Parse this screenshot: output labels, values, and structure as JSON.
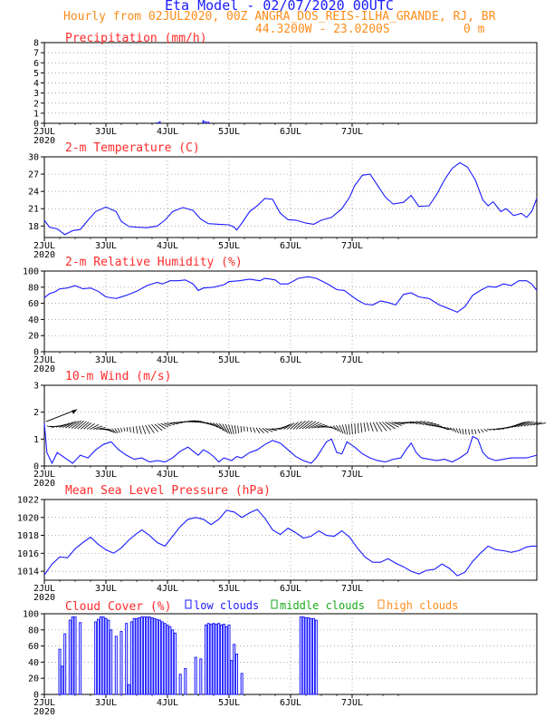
{
  "header": {
    "title": "Eta Model - 02/07/2020 00UTC",
    "line2": "Hourly from 02JUL2020, 00Z  ANGRA_DOS_REIS-ILHA_GRANDE, RJ, BR",
    "coords": "44.3200W - 23.0200S",
    "elevation": "0  m"
  },
  "colors": {
    "title": "#1a1aff",
    "subtitle": "#ff8c1a",
    "panel_title": "#ff2a2a",
    "line": "#1a1aff",
    "wind": "#000000",
    "low": "#1a1aff",
    "middle": "#1aaa1a",
    "high": "#ff8c1a"
  },
  "chart_data": [
    {
      "id": "precip",
      "type": "bar",
      "title": "Precipitation (mm/h)",
      "x_ticks": [
        "2JUL",
        "3JUL",
        "4JUL",
        "5JUL",
        "6JUL",
        "7JUL"
      ],
      "x_year": "2020",
      "ylim": [
        0,
        8
      ],
      "y_ticks": [
        "0",
        "1",
        "2",
        "3",
        "4",
        "5",
        "6",
        "7",
        "8"
      ],
      "bars": [
        [
          44,
          0.1
        ],
        [
          45,
          0.2
        ],
        [
          62,
          0.3
        ],
        [
          63,
          0.2
        ],
        [
          64,
          0.15
        ]
      ]
    },
    {
      "id": "temp",
      "type": "line",
      "title": "2-m Temperature (C)",
      "x_ticks": [
        "2JUL",
        "3JUL",
        "4JUL",
        "5JUL",
        "6JUL",
        "7JUL"
      ],
      "x_year": "2020",
      "ylim": [
        16,
        30
      ],
      "y_ticks": [
        "18",
        "21",
        "24",
        "27",
        "30"
      ],
      "series": [
        [
          0,
          19
        ],
        [
          2,
          17.8
        ],
        [
          5,
          17.5
        ],
        [
          8,
          16.5
        ],
        [
          11,
          17.2
        ],
        [
          14,
          17.4
        ],
        [
          17,
          19
        ],
        [
          20,
          20.5
        ],
        [
          24,
          21.3
        ],
        [
          28,
          20.5
        ],
        [
          30,
          18.8
        ],
        [
          33,
          17.9
        ],
        [
          36,
          17.8
        ],
        [
          40,
          17.7
        ],
        [
          44,
          18
        ],
        [
          47,
          19
        ],
        [
          50,
          20.5
        ],
        [
          54,
          21.2
        ],
        [
          58,
          20.7
        ],
        [
          61,
          19.2
        ],
        [
          64,
          18.4
        ],
        [
          68,
          18.3
        ],
        [
          72,
          18.2
        ],
        [
          74,
          17.8
        ],
        [
          75,
          17.3
        ],
        [
          77,
          18.5
        ],
        [
          80,
          20.5
        ],
        [
          83,
          21.5
        ],
        [
          86,
          22.8
        ],
        [
          89,
          22.6
        ],
        [
          92,
          20.2
        ],
        [
          95,
          19.1
        ],
        [
          98,
          19
        ],
        [
          102,
          18.5
        ],
        [
          105,
          18.3
        ],
        [
          108,
          19
        ],
        [
          112,
          19.5
        ],
        [
          116,
          21
        ],
        [
          119,
          23
        ],
        [
          121,
          25
        ],
        [
          124,
          26.8
        ],
        [
          127,
          27
        ],
        [
          130,
          25
        ],
        [
          133,
          23
        ],
        [
          136,
          21.8
        ],
        [
          140,
          22.1
        ],
        [
          143,
          23.3
        ],
        [
          146,
          21.4
        ],
        [
          150,
          21.5
        ],
        [
          153,
          23.5
        ],
        [
          156,
          26
        ],
        [
          159,
          28
        ],
        [
          162,
          29
        ],
        [
          165,
          28.2
        ],
        [
          168,
          26
        ],
        [
          171,
          22.5
        ],
        [
          173,
          21.5
        ],
        [
          175,
          22.2
        ],
        [
          178,
          20.5
        ],
        [
          180,
          21
        ],
        [
          183,
          19.8
        ],
        [
          186,
          20.2
        ],
        [
          188,
          19.5
        ],
        [
          190,
          20.5
        ],
        [
          192,
          22.8
        ]
      ]
    },
    {
      "id": "rh",
      "type": "line",
      "title": "2-m Relative Humidity (%)",
      "x_ticks": [
        "2JUL",
        "3JUL",
        "4JUL",
        "5JUL",
        "6JUL",
        "7JUL"
      ],
      "x_year": "2020",
      "ylim": [
        0,
        100
      ],
      "y_ticks": [
        "0",
        "20",
        "40",
        "60",
        "80",
        "100"
      ],
      "series": [
        [
          0,
          67
        ],
        [
          2,
          72
        ],
        [
          4,
          74
        ],
        [
          6,
          78
        ],
        [
          9,
          79
        ],
        [
          12,
          82
        ],
        [
          15,
          78
        ],
        [
          18,
          79
        ],
        [
          21,
          75
        ],
        [
          24,
          68
        ],
        [
          28,
          66
        ],
        [
          32,
          70
        ],
        [
          36,
          75
        ],
        [
          40,
          82
        ],
        [
          44,
          86
        ],
        [
          46,
          84
        ],
        [
          49,
          88
        ],
        [
          52,
          88
        ],
        [
          55,
          89
        ],
        [
          58,
          84
        ],
        [
          60,
          76
        ],
        [
          62,
          79
        ],
        [
          66,
          80
        ],
        [
          70,
          83
        ],
        [
          72,
          87
        ],
        [
          76,
          88
        ],
        [
          80,
          90
        ],
        [
          84,
          88
        ],
        [
          86,
          91
        ],
        [
          90,
          89
        ],
        [
          92,
          84
        ],
        [
          95,
          84
        ],
        [
          99,
          91
        ],
        [
          103,
          93
        ],
        [
          106,
          91
        ],
        [
          108,
          88
        ],
        [
          111,
          83
        ],
        [
          114,
          77
        ],
        [
          117,
          76
        ],
        [
          119,
          71
        ],
        [
          122,
          64
        ],
        [
          125,
          59
        ],
        [
          128,
          58
        ],
        [
          131,
          63
        ],
        [
          134,
          61
        ],
        [
          137,
          58
        ],
        [
          140,
          71
        ],
        [
          143,
          73
        ],
        [
          146,
          68
        ],
        [
          150,
          66
        ],
        [
          154,
          58
        ],
        [
          158,
          53
        ],
        [
          161,
          49
        ],
        [
          164,
          56
        ],
        [
          167,
          70
        ],
        [
          170,
          76
        ],
        [
          173,
          81
        ],
        [
          176,
          80
        ],
        [
          179,
          84
        ],
        [
          182,
          82
        ],
        [
          185,
          88
        ],
        [
          188,
          88
        ],
        [
          190,
          84
        ],
        [
          192,
          76
        ]
      ]
    },
    {
      "id": "wind",
      "type": "line",
      "title": "10-m Wind (m/s)",
      "x_ticks": [
        "2JUL",
        "3JUL",
        "4JUL",
        "5JUL",
        "6JUL",
        "7JUL"
      ],
      "x_year": "2020",
      "ylim": [
        0,
        3
      ],
      "y_ticks": [
        "0",
        "1",
        "2",
        "3"
      ],
      "series": [
        [
          0,
          1.6
        ],
        [
          1,
          0.5
        ],
        [
          3,
          0.1
        ],
        [
          5,
          0.5
        ],
        [
          8,
          0.3
        ],
        [
          11,
          0.1
        ],
        [
          14,
          0.4
        ],
        [
          17,
          0.3
        ],
        [
          20,
          0.6
        ],
        [
          23,
          0.8
        ],
        [
          26,
          0.9
        ],
        [
          29,
          0.6
        ],
        [
          32,
          0.4
        ],
        [
          35,
          0.25
        ],
        [
          38,
          0.3
        ],
        [
          41,
          0.15
        ],
        [
          44,
          0.2
        ],
        [
          47,
          0.15
        ],
        [
          50,
          0.3
        ],
        [
          53,
          0.55
        ],
        [
          56,
          0.7
        ],
        [
          58,
          0.55
        ],
        [
          60,
          0.4
        ],
        [
          62,
          0.6
        ],
        [
          64,
          0.5
        ],
        [
          66,
          0.35
        ],
        [
          68,
          0.15
        ],
        [
          70,
          0.3
        ],
        [
          73,
          0.2
        ],
        [
          75,
          0.35
        ],
        [
          77,
          0.3
        ],
        [
          80,
          0.5
        ],
        [
          83,
          0.6
        ],
        [
          86,
          0.8
        ],
        [
          89,
          0.95
        ],
        [
          92,
          0.85
        ],
        [
          95,
          0.6
        ],
        [
          98,
          0.35
        ],
        [
          101,
          0.2
        ],
        [
          104,
          0.1
        ],
        [
          106,
          0.3
        ],
        [
          108,
          0.6
        ],
        [
          110,
          0.9
        ],
        [
          112,
          1.0
        ],
        [
          114,
          0.5
        ],
        [
          116,
          0.45
        ],
        [
          118,
          0.9
        ],
        [
          121,
          0.7
        ],
        [
          124,
          0.45
        ],
        [
          127,
          0.3
        ],
        [
          130,
          0.2
        ],
        [
          133,
          0.15
        ],
        [
          136,
          0.25
        ],
        [
          139,
          0.3
        ],
        [
          141,
          0.6
        ],
        [
          143,
          0.85
        ],
        [
          145,
          0.5
        ],
        [
          147,
          0.3
        ],
        [
          150,
          0.25
        ],
        [
          153,
          0.2
        ],
        [
          156,
          0.25
        ],
        [
          159,
          0.15
        ],
        [
          162,
          0.3
        ],
        [
          165,
          0.5
        ],
        [
          167,
          1.1
        ],
        [
          169,
          1.0
        ],
        [
          171,
          0.5
        ],
        [
          173,
          0.3
        ],
        [
          176,
          0.2
        ],
        [
          179,
          0.25
        ],
        [
          182,
          0.3
        ],
        [
          185,
          0.3
        ],
        [
          188,
          0.3
        ],
        [
          190,
          0.35
        ],
        [
          192,
          0.4
        ]
      ]
    },
    {
      "id": "slp",
      "type": "line",
      "title": "Mean Sea Level Pressure (hPa)",
      "x_ticks": [
        "2JUL",
        "3JUL",
        "4JUL",
        "5JUL",
        "6JUL",
        "7JUL"
      ],
      "x_year": "2020",
      "ylim": [
        1013,
        1022
      ],
      "y_ticks": [
        "1014",
        "1016",
        "1018",
        "1020",
        "1022"
      ],
      "series": [
        [
          0,
          1013.6
        ],
        [
          3,
          1014.8
        ],
        [
          6,
          1015.6
        ],
        [
          9,
          1015.5
        ],
        [
          12,
          1016.5
        ],
        [
          15,
          1017.2
        ],
        [
          18,
          1017.8
        ],
        [
          21,
          1017.0
        ],
        [
          24,
          1016.4
        ],
        [
          27,
          1016.0
        ],
        [
          30,
          1016.6
        ],
        [
          33,
          1017.5
        ],
        [
          36,
          1018.2
        ],
        [
          38,
          1018.6
        ],
        [
          41,
          1018.0
        ],
        [
          44,
          1017.2
        ],
        [
          47,
          1016.8
        ],
        [
          50,
          1017.9
        ],
        [
          53,
          1019.0
        ],
        [
          56,
          1019.8
        ],
        [
          59,
          1020.0
        ],
        [
          62,
          1019.8
        ],
        [
          65,
          1019.2
        ],
        [
          68,
          1019.8
        ],
        [
          71,
          1020.8
        ],
        [
          74,
          1020.6
        ],
        [
          77,
          1020.0
        ],
        [
          80,
          1020.5
        ],
        [
          83,
          1020.9
        ],
        [
          86,
          1019.9
        ],
        [
          89,
          1018.6
        ],
        [
          92,
          1018.1
        ],
        [
          95,
          1018.8
        ],
        [
          98,
          1018.3
        ],
        [
          101,
          1017.7
        ],
        [
          104,
          1017.9
        ],
        [
          107,
          1018.5
        ],
        [
          110,
          1018.0
        ],
        [
          113,
          1017.9
        ],
        [
          116,
          1018.5
        ],
        [
          119,
          1017.8
        ],
        [
          122,
          1016.6
        ],
        [
          125,
          1015.6
        ],
        [
          128,
          1015.0
        ],
        [
          131,
          1015.0
        ],
        [
          134,
          1015.4
        ],
        [
          137,
          1014.9
        ],
        [
          140,
          1014.5
        ],
        [
          143,
          1014.0
        ],
        [
          146,
          1013.7
        ],
        [
          149,
          1014.1
        ],
        [
          152,
          1014.2
        ],
        [
          155,
          1014.8
        ],
        [
          158,
          1014.3
        ],
        [
          161,
          1013.5
        ],
        [
          164,
          1013.9
        ],
        [
          167,
          1015.1
        ],
        [
          170,
          1016.0
        ],
        [
          173,
          1016.8
        ],
        [
          176,
          1016.4
        ],
        [
          179,
          1016.3
        ],
        [
          182,
          1016.1
        ],
        [
          185,
          1016.3
        ],
        [
          188,
          1016.7
        ],
        [
          190,
          1016.8
        ],
        [
          192,
          1016.8
        ]
      ]
    },
    {
      "id": "cloud",
      "type": "bar",
      "title": "Cloud Cover (%)",
      "legend": [
        "low clouds",
        "middle clouds",
        "high clouds"
      ],
      "x_ticks": [
        "2JUL",
        "3JUL",
        "4JUL",
        "5JUL",
        "6JUL",
        "7JUL"
      ],
      "x_year": "2020",
      "ylim": [
        0,
        100
      ],
      "y_ticks": [
        "0",
        "20",
        "40",
        "60",
        "80",
        "100"
      ],
      "bars": [
        [
          6,
          56
        ],
        [
          7,
          35
        ],
        [
          8,
          75
        ],
        [
          10,
          92
        ],
        [
          11,
          96
        ],
        [
          12,
          96
        ],
        [
          14,
          89
        ],
        [
          20,
          90
        ],
        [
          21,
          93
        ],
        [
          22,
          96
        ],
        [
          23,
          96
        ],
        [
          24,
          94
        ],
        [
          25,
          92
        ],
        [
          26,
          80
        ],
        [
          28,
          72
        ],
        [
          30,
          78
        ],
        [
          32,
          88
        ],
        [
          33,
          12
        ],
        [
          34,
          90
        ],
        [
          35,
          94
        ],
        [
          36,
          94
        ],
        [
          37,
          95
        ],
        [
          38,
          96
        ],
        [
          39,
          96
        ],
        [
          40,
          96
        ],
        [
          41,
          96
        ],
        [
          42,
          95
        ],
        [
          43,
          94
        ],
        [
          44,
          93
        ],
        [
          45,
          92
        ],
        [
          46,
          90
        ],
        [
          47,
          88
        ],
        [
          48,
          86
        ],
        [
          49,
          84
        ],
        [
          50,
          80
        ],
        [
          51,
          76
        ],
        [
          53,
          25
        ],
        [
          55,
          32
        ],
        [
          59,
          46
        ],
        [
          61,
          44
        ],
        [
          63,
          86
        ],
        [
          64,
          88
        ],
        [
          65,
          87
        ],
        [
          66,
          88
        ],
        [
          67,
          87
        ],
        [
          68,
          88
        ],
        [
          69,
          86
        ],
        [
          70,
          87
        ],
        [
          71,
          84
        ],
        [
          72,
          86
        ],
        [
          73,
          42
        ],
        [
          74,
          62
        ],
        [
          75,
          50
        ],
        [
          77,
          26
        ],
        [
          100,
          96
        ],
        [
          101,
          96
        ],
        [
          102,
          95
        ],
        [
          103,
          95
        ],
        [
          104,
          94
        ],
        [
          105,
          94
        ],
        [
          106,
          92
        ]
      ]
    }
  ]
}
